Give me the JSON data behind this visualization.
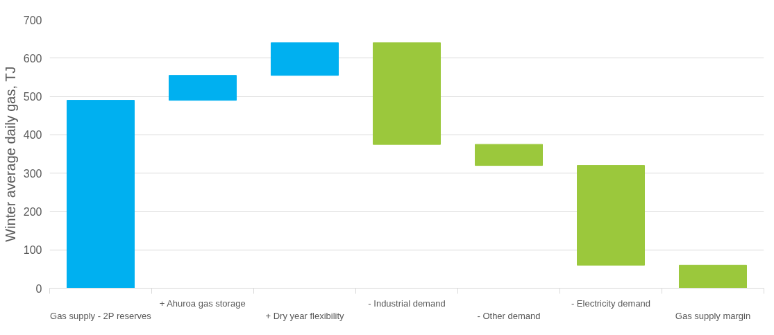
{
  "chart_data": {
    "type": "bar",
    "ylabel": "Winter average daily gas, TJ",
    "categories": [
      "Gas supply - 2P reserves",
      "+ Ahuroa gas storage",
      "+ Dry year flexibility",
      "- Industrial demand",
      "- Other demand",
      "- Electricity demand",
      "Gas supply margin"
    ],
    "values": [
      490,
      65,
      85,
      -265,
      -55,
      -260,
      60
    ],
    "base": [
      0,
      490,
      555,
      640,
      375,
      320,
      0
    ],
    "colors": [
      "#00b0f0",
      "#00b0f0",
      "#00b0f0",
      "#9bc83c",
      "#9bc83c",
      "#9bc83c",
      "#9bc83c"
    ],
    "ylim": [
      0,
      700
    ],
    "yticks": [
      0,
      100,
      200,
      300,
      400,
      500,
      600,
      700
    ],
    "grid": "y"
  }
}
